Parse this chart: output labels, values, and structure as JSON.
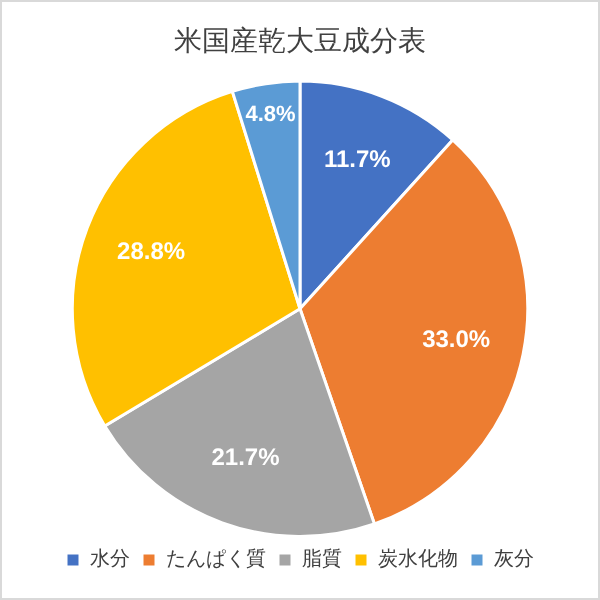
{
  "chart_data": {
    "type": "pie",
    "title": "米国産乾大豆成分表",
    "categories": [
      "水分",
      "たんぱく質",
      "脂質",
      "炭水化物",
      "灰分"
    ],
    "values": [
      11.7,
      33.0,
      21.7,
      28.8,
      4.8
    ],
    "value_labels": [
      "11.7%",
      "33.0%",
      "21.7%",
      "28.8%",
      "4.8%"
    ],
    "colors": [
      "#4472c4",
      "#ed7d31",
      "#a5a5a5",
      "#ffc000",
      "#5b9bd5"
    ],
    "legend": "bottom"
  }
}
